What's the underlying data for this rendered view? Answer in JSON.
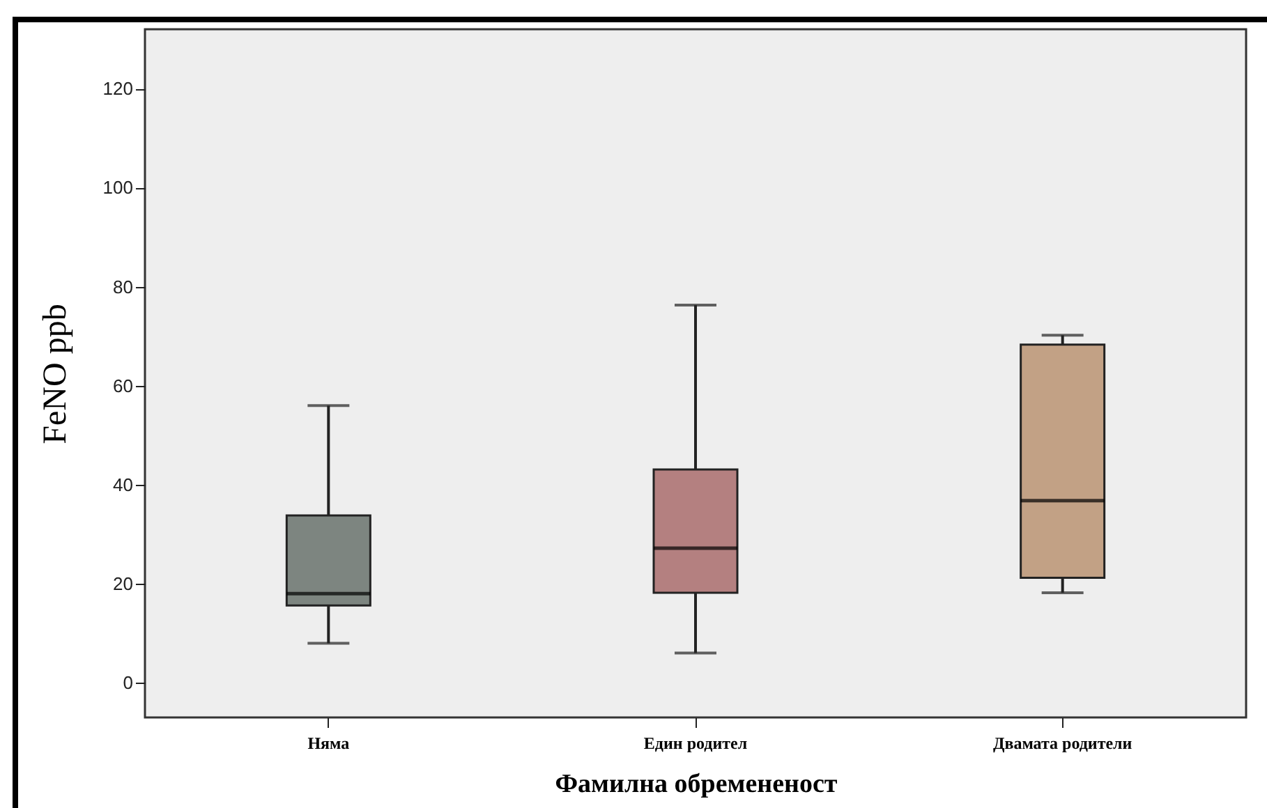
{
  "chart_data": {
    "type": "box",
    "xlabel": "Фамилна обремененост",
    "ylabel": "FeNO ppb",
    "categories": [
      "Няма",
      "Един родител",
      "Двамата родители"
    ],
    "boxes": [
      {
        "low": 8,
        "q1": 15.6,
        "median": 18,
        "q3": 33.8,
        "high": 56
      },
      {
        "low": 6,
        "q1": 18.2,
        "median": 27.2,
        "q3": 43.1,
        "high": 76.3
      },
      {
        "low": 18.2,
        "q1": 21.2,
        "median": 36.8,
        "q3": 68.3,
        "high": 70.2
      }
    ],
    "colors": [
      "#7d8580",
      "#b48080",
      "#c2a185"
    ],
    "ylim": [
      -7,
      132
    ],
    "yticks": [
      0,
      20,
      40,
      60,
      80,
      100,
      120
    ]
  }
}
